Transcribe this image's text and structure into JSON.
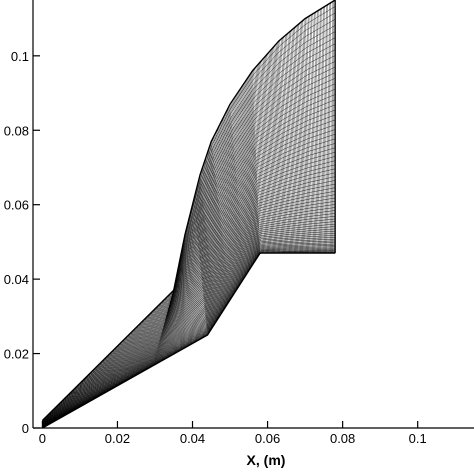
{
  "chart_data": {
    "type": "mesh",
    "xlabel": "X, (m)",
    "ylabel": "",
    "xlim": [
      -0.0025,
      0.115
    ],
    "ylim": [
      0,
      0.115
    ],
    "x_ticks": [
      {
        "value": 0,
        "label": "0"
      },
      {
        "value": 0.02,
        "label": "0.02"
      },
      {
        "value": 0.04,
        "label": "0.04"
      },
      {
        "value": 0.06,
        "label": "0.06"
      },
      {
        "value": 0.08,
        "label": "0.08"
      },
      {
        "value": 0.1,
        "label": "0.1"
      }
    ],
    "y_ticks": [
      {
        "value": 0,
        "label": "0"
      },
      {
        "value": 0.02,
        "label": "0.02"
      },
      {
        "value": 0.04,
        "label": "0.04"
      },
      {
        "value": 0.06,
        "label": "0.06"
      },
      {
        "value": 0.08,
        "label": "0.08"
      },
      {
        "value": 0.1,
        "label": "0.1"
      }
    ],
    "lower_wall": [
      [
        0,
        0
      ],
      [
        0.044,
        0.025
      ],
      [
        0.058,
        0.047
      ],
      [
        0.078,
        0.047
      ]
    ],
    "outer_boundary": [
      [
        0,
        0.002
      ],
      [
        0.035,
        0.037
      ],
      [
        0.038,
        0.052
      ],
      [
        0.042,
        0.068
      ],
      [
        0.045,
        0.077
      ],
      [
        0.05,
        0.087
      ],
      [
        0.056,
        0.096
      ],
      [
        0.063,
        0.104
      ],
      [
        0.07,
        0.11
      ],
      [
        0.078,
        0.115
      ]
    ],
    "outlet_x": 0.078,
    "grid_color": "#000000",
    "grid": false
  }
}
